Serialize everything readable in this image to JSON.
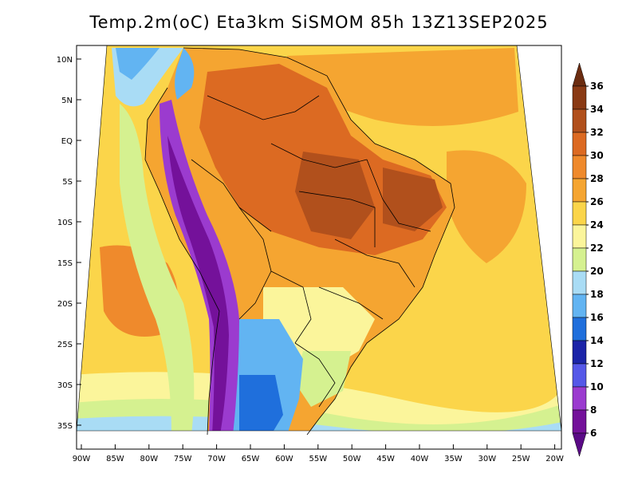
{
  "title": "Temp.2m(oC) Eta3km SiSMOM 85h 13Z13SEP2025",
  "axes": {
    "lat_labels": [
      "10N",
      "5N",
      "EQ",
      "5S",
      "10S",
      "15S",
      "20S",
      "25S",
      "30S",
      "35S"
    ],
    "lon_labels": [
      "90W",
      "85W",
      "80W",
      "75W",
      "70W",
      "65W",
      "60W",
      "55W",
      "50W",
      "45W",
      "40W",
      "35W",
      "30W",
      "25W",
      "20W"
    ]
  },
  "colorbar": {
    "labels": [
      "36",
      "34",
      "32",
      "30",
      "28",
      "26",
      "24",
      "22",
      "20",
      "18",
      "16",
      "14",
      "12",
      "10",
      "8",
      "6"
    ],
    "colors": {
      "above36": "#6b2c10",
      "34_36": "#8a3a14",
      "32_34": "#b1501c",
      "30_32": "#dc6a22",
      "28_30": "#ef8a2c",
      "26_28": "#f5a531",
      "24_26": "#fbd54a",
      "22_24": "#fbf59b",
      "20_22": "#d5f190",
      "18_20": "#a9dcf5",
      "16_18": "#62b4f2",
      "14_16": "#1f6fdc",
      "12_14": "#1b24a8",
      "10_12": "#5558e8",
      "8_10": "#9b3bcf",
      "6_8": "#74119a",
      "below6": "#5a0a86"
    }
  }
}
